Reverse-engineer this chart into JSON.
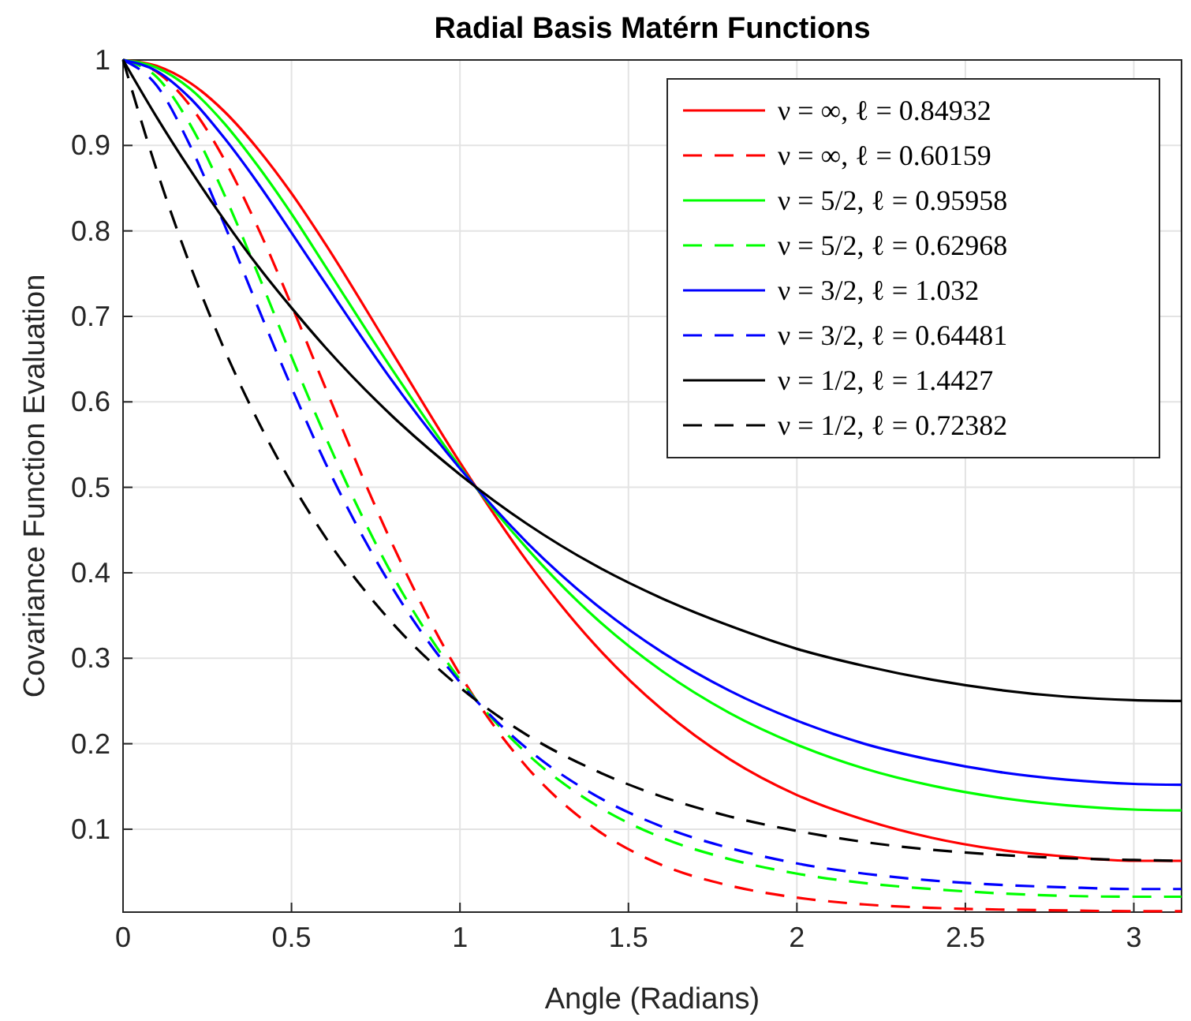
{
  "chart_data": {
    "type": "line",
    "title": "Radial Basis Matérn Functions",
    "xlabel": "Angle (Radians)",
    "ylabel": "Covariance Function Evaluation",
    "x": [
      0,
      0.1,
      0.2,
      0.3,
      0.4,
      0.5,
      0.6,
      0.8,
      1,
      1.2,
      1.4,
      1.6,
      1.8,
      2,
      2.2,
      2.4,
      2.6,
      2.8,
      3,
      3.1416
    ],
    "series": [
      {
        "name": "ν = ∞, ℓ = 0.84932",
        "color": "#ff0000",
        "line_style": "solid",
        "values": [
          1,
          0.993,
          0.973,
          0.94,
          0.896,
          0.844,
          0.785,
          0.657,
          0.529,
          0.413,
          0.316,
          0.24,
          0.182,
          0.14,
          0.111,
          0.09,
          0.076,
          0.068,
          0.063,
          0.063
        ]
      },
      {
        "name": "ν = ∞, ℓ = 0.60159",
        "color": "#ff0000",
        "line_style": "dashed",
        "values": [
          1,
          0.986,
          0.946,
          0.884,
          0.804,
          0.713,
          0.617,
          0.433,
          0.281,
          0.172,
          0.101,
          0.058,
          0.034,
          0.02,
          0.012,
          0.008,
          0.006,
          0.005,
          0.004,
          0.004
        ]
      },
      {
        "name": "ν = 5/2, ℓ = 0.95958",
        "color": "#00ff00",
        "line_style": "solid",
        "values": [
          1,
          0.991,
          0.966,
          0.926,
          0.876,
          0.82,
          0.759,
          0.637,
          0.524,
          0.428,
          0.348,
          0.285,
          0.236,
          0.199,
          0.171,
          0.151,
          0.137,
          0.128,
          0.123,
          0.122
        ]
      },
      {
        "name": "ν = 5/2, ℓ = 0.62968",
        "color": "#00ff00",
        "line_style": "dashed",
        "values": [
          1,
          0.98,
          0.924,
          0.843,
          0.75,
          0.653,
          0.56,
          0.397,
          0.275,
          0.188,
          0.129,
          0.09,
          0.065,
          0.048,
          0.037,
          0.03,
          0.025,
          0.022,
          0.021,
          0.021
        ]
      },
      {
        "name": "ν = 3/2, ℓ = 1.032",
        "color": "#0000ff",
        "line_style": "solid",
        "values": [
          1,
          0.987,
          0.955,
          0.909,
          0.856,
          0.798,
          0.739,
          0.624,
          0.522,
          0.435,
          0.364,
          0.307,
          0.262,
          0.227,
          0.2,
          0.181,
          0.167,
          0.158,
          0.153,
          0.152
        ]
      },
      {
        "name": "ν = 3/2, ℓ = 0.64481",
        "color": "#0000ff",
        "line_style": "dashed",
        "values": [
          1,
          0.97,
          0.899,
          0.808,
          0.711,
          0.617,
          0.529,
          0.382,
          0.272,
          0.194,
          0.14,
          0.103,
          0.078,
          0.06,
          0.048,
          0.04,
          0.035,
          0.032,
          0.03,
          0.03
        ]
      },
      {
        "name": "ν = 1/2, ℓ = 1.4427",
        "color": "#000000",
        "line_style": "solid",
        "values": [
          1,
          0.933,
          0.871,
          0.813,
          0.759,
          0.71,
          0.664,
          0.583,
          0.515,
          0.457,
          0.409,
          0.37,
          0.338,
          0.311,
          0.291,
          0.275,
          0.263,
          0.255,
          0.251,
          0.25
        ]
      },
      {
        "name": "ν = 1/2, ℓ = 0.72382",
        "color": "#000000",
        "line_style": "dashed",
        "values": [
          1,
          0.871,
          0.759,
          0.662,
          0.578,
          0.505,
          0.442,
          0.341,
          0.266,
          0.21,
          0.169,
          0.138,
          0.115,
          0.098,
          0.085,
          0.076,
          0.07,
          0.066,
          0.064,
          0.063
        ]
      }
    ],
    "xlim": [
      0,
      3.1416
    ],
    "xticks": [
      0,
      0.5,
      1,
      1.5,
      2,
      2.5,
      3
    ],
    "ylim": [
      0.003,
      1
    ],
    "yticks": [
      0.1,
      0.2,
      0.3,
      0.4,
      0.5,
      0.6,
      0.7,
      0.8,
      0.9,
      1
    ],
    "grid": true,
    "legend": "top right"
  }
}
